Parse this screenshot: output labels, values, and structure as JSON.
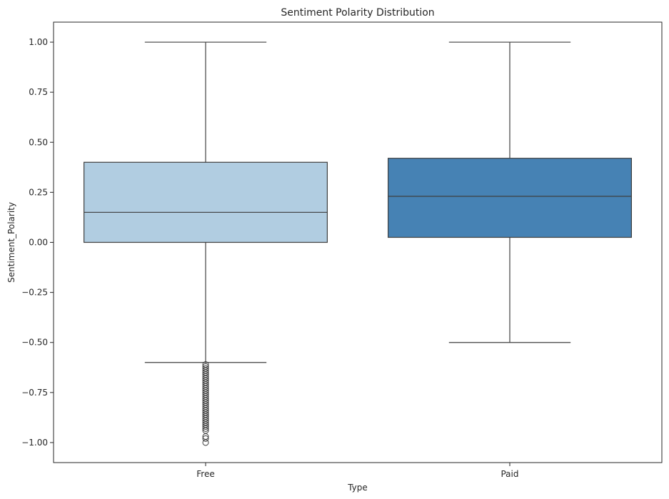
{
  "chart_data": {
    "type": "box",
    "title": "Sentiment Polarity Distribution",
    "xlabel": "Type",
    "ylabel": "Sentiment_Polarity",
    "categories": [
      "Free",
      "Paid"
    ],
    "ylim": [
      -1.1,
      1.1
    ],
    "yticks": [
      1.0,
      0.75,
      0.5,
      0.25,
      0.0,
      -0.25,
      -0.5,
      -0.75,
      -1.0
    ],
    "ytick_labels": [
      "1.00",
      "0.75",
      "0.50",
      "0.25",
      "0.00",
      "−0.25",
      "−0.50",
      "−0.75",
      "−1.00"
    ],
    "grid": false,
    "boxes": [
      {
        "category": "Free",
        "whisker_low": -0.6,
        "q1": 0.0,
        "median": 0.15,
        "q3": 0.4,
        "whisker_high": 1.0,
        "outliers": [
          -0.61,
          -0.62,
          -0.63,
          -0.64,
          -0.65,
          -0.66,
          -0.67,
          -0.68,
          -0.69,
          -0.7,
          -0.71,
          -0.72,
          -0.73,
          -0.74,
          -0.75,
          -0.76,
          -0.77,
          -0.78,
          -0.79,
          -0.8,
          -0.81,
          -0.82,
          -0.83,
          -0.84,
          -0.85,
          -0.86,
          -0.87,
          -0.88,
          -0.89,
          -0.9,
          -0.91,
          -0.92,
          -0.93,
          -0.94,
          -0.97,
          -0.98,
          -1.0
        ],
        "color": "#b1cde1"
      },
      {
        "category": "Paid",
        "whisker_low": -0.5,
        "q1": 0.025,
        "median": 0.23,
        "q3": 0.42,
        "whisker_high": 1.0,
        "outliers": [],
        "color": "#4682b4"
      }
    ],
    "edge_color": "#3f3f3f"
  }
}
